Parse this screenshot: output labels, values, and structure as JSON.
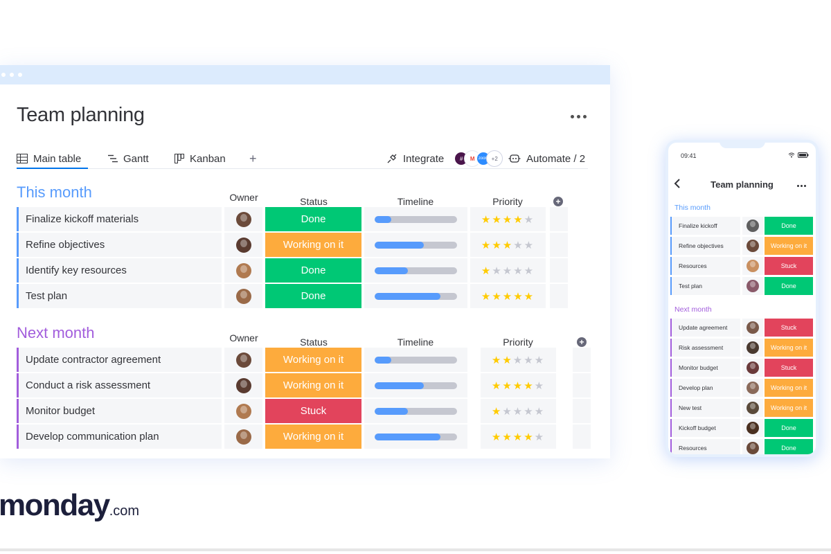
{
  "board": {
    "title": "Team planning",
    "tabs": {
      "main_table": "Main table",
      "gantt": "Gantt",
      "kanban": "Kanban",
      "add": "+",
      "integrate": "Integrate",
      "integrate_more": "+2",
      "automate": "Automate / 2"
    },
    "columns": {
      "owner": "Owner",
      "status": "Status",
      "timeline": "Timeline",
      "priority": "Priority"
    },
    "groups": [
      {
        "title": "This month",
        "color": "#579bfc",
        "rows": [
          {
            "name": "Finalize kickoff materials",
            "status": "Done",
            "status_color": "#00c875",
            "timeline": 0.2,
            "priority": 4,
            "avatar_color": "#6b4a3a"
          },
          {
            "name": "Refine objectives",
            "status": "Working on it",
            "status_color": "#fdab3d",
            "timeline": 0.6,
            "priority": 3,
            "avatar_color": "#5a3b30"
          },
          {
            "name": "Identify key resources",
            "status": "Done",
            "status_color": "#00c875",
            "timeline": 0.4,
            "priority": 1,
            "avatar_color": "#b07a50"
          },
          {
            "name": "Test plan",
            "status": "Done",
            "status_color": "#00c875",
            "timeline": 0.8,
            "priority": 5,
            "avatar_color": "#9a6a48"
          }
        ]
      },
      {
        "title": "Next month",
        "color": "#a25ddc",
        "rows": [
          {
            "name": "Update contractor agreement",
            "status": "Working on it",
            "status_color": "#fdab3d",
            "timeline": 0.2,
            "priority": 2,
            "avatar_color": "#6b4a3a"
          },
          {
            "name": "Conduct a risk assessment",
            "status": "Working on it",
            "status_color": "#fdab3d",
            "timeline": 0.6,
            "priority": 4,
            "avatar_color": "#5a3b30"
          },
          {
            "name": "Monitor budget",
            "status": "Stuck",
            "status_color": "#e2445c",
            "timeline": 0.4,
            "priority": 1,
            "avatar_color": "#b07a50"
          },
          {
            "name": "Develop communication plan",
            "status": "Working on it",
            "status_color": "#fdab3d",
            "timeline": 0.8,
            "priority": 4,
            "avatar_color": "#9a6a48"
          }
        ]
      }
    ]
  },
  "logo": {
    "main": "monday",
    "suffix": ".com"
  },
  "phone": {
    "time": "09:41",
    "title": "Team planning",
    "groups": [
      {
        "title": "This month",
        "color": "#579bfc",
        "rows": [
          {
            "name": "Finalize kickoff",
            "status": "Done",
            "status_color": "#00c875",
            "avatar_color": "#5f5f5f"
          },
          {
            "name": "Refine objectives",
            "status": "Working on it",
            "status_color": "#fdab3d",
            "avatar_color": "#6b4a3a"
          },
          {
            "name": "Resources",
            "status": "Stuck",
            "status_color": "#e2445c",
            "avatar_color": "#c99060"
          },
          {
            "name": "Test plan",
            "status": "Done",
            "status_color": "#00c875",
            "avatar_color": "#8a5a6a"
          }
        ]
      },
      {
        "title": "Next month",
        "color": "#a25ddc",
        "rows": [
          {
            "name": "Update agreement",
            "status": "Stuck",
            "status_color": "#e2445c",
            "avatar_color": "#7a5a4a"
          },
          {
            "name": "Risk assessment",
            "status": "Working on it",
            "status_color": "#fdab3d",
            "avatar_color": "#4a3a30"
          },
          {
            "name": "Monitor budget",
            "status": "Stuck",
            "status_color": "#e2445c",
            "avatar_color": "#6a3a3a"
          },
          {
            "name": "Develop plan",
            "status": "Working on it",
            "status_color": "#fdab3d",
            "avatar_color": "#8a6a5a"
          },
          {
            "name": "New test",
            "status": "Working on it",
            "status_color": "#fdab3d",
            "avatar_color": "#5a4a3a"
          },
          {
            "name": "Kickoff budget",
            "status": "Done",
            "status_color": "#00c875",
            "avatar_color": "#4a3020"
          },
          {
            "name": "Resources",
            "status": "Done",
            "status_color": "#00c875",
            "avatar_color": "#6a4a3a"
          }
        ]
      }
    ]
  },
  "integrations": [
    {
      "name": "slack-icon",
      "color": "#4a154b"
    },
    {
      "name": "gmail-icon",
      "color": "#ea4335"
    },
    {
      "name": "zoom-icon",
      "color": "#2d8cff"
    },
    {
      "name": "more-integrations-badge",
      "color": "#ffffff"
    }
  ]
}
